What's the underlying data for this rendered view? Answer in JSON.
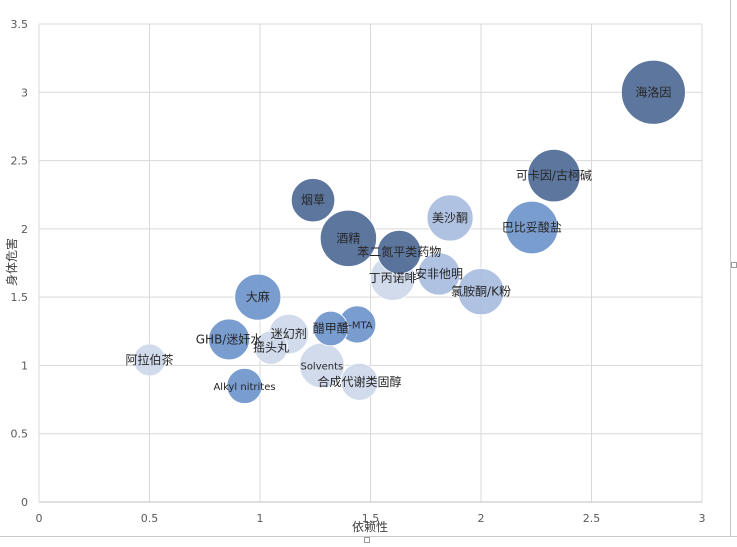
{
  "chart_data": {
    "type": "bubble",
    "title": "",
    "xlabel": "依赖性",
    "ylabel": "身体危害",
    "xlim": [
      0,
      3
    ],
    "ylim": [
      0,
      3.5
    ],
    "xticks": [
      "0",
      "0.5",
      "1",
      "1.5",
      "2",
      "2.5",
      "3"
    ],
    "yticks": [
      "0",
      "0.5",
      "1",
      "1.5",
      "2",
      "2.5",
      "3",
      "3.5"
    ],
    "grid": true,
    "legend": "none",
    "colors": {
      "dark": "#4f6a95",
      "mid": "#6f95cc",
      "light": "#a9bde0",
      "pale": "#cdd8ea"
    },
    "points": [
      {
        "label": "海洛因",
        "x": 2.78,
        "y": 3.0,
        "size": 1.0,
        "shade": "dark"
      },
      {
        "label": "可卡因/古柯碱",
        "x": 2.33,
        "y": 2.39,
        "size": 0.82,
        "shade": "dark"
      },
      {
        "label": "巴比妥酸盐",
        "x": 2.23,
        "y": 2.01,
        "size": 0.82,
        "shade": "mid"
      },
      {
        "label": "美沙酮",
        "x": 1.86,
        "y": 2.08,
        "size": 0.72,
        "shade": "light"
      },
      {
        "label": "酒精",
        "x": 1.4,
        "y": 1.93,
        "size": 0.88,
        "shade": "dark"
      },
      {
        "label": "烟草",
        "x": 1.24,
        "y": 2.21,
        "size": 0.68,
        "shade": "dark"
      },
      {
        "label": "苯二氮平类药物",
        "x": 1.63,
        "y": 1.83,
        "size": 0.68,
        "shade": "dark"
      },
      {
        "label": "丁丙诺啡",
        "x": 1.6,
        "y": 1.64,
        "size": 0.7,
        "shade": "pale"
      },
      {
        "label": "安非他明",
        "x": 1.81,
        "y": 1.67,
        "size": 0.66,
        "shade": "light"
      },
      {
        "label": "氯胺酮/K粉",
        "x": 2.0,
        "y": 1.54,
        "size": 0.72,
        "shade": "light"
      },
      {
        "label": "大麻",
        "x": 0.99,
        "y": 1.5,
        "size": 0.72,
        "shade": "mid"
      },
      {
        "label": "4-MTA",
        "x": 1.44,
        "y": 1.3,
        "size": 0.58,
        "shade": "mid"
      },
      {
        "label": "醋甲酯",
        "x": 1.32,
        "y": 1.27,
        "size": 0.54,
        "shade": "mid"
      },
      {
        "label": "迷幻剂",
        "x": 1.13,
        "y": 1.23,
        "size": 0.62,
        "shade": "pale"
      },
      {
        "label": "GHB/迷奸水",
        "x": 0.86,
        "y": 1.19,
        "size": 0.64,
        "shade": "mid"
      },
      {
        "label": "摇头丸",
        "x": 1.05,
        "y": 1.13,
        "size": 0.52,
        "shade": "pale"
      },
      {
        "label": "阿拉伯茶",
        "x": 0.5,
        "y": 1.04,
        "size": 0.5,
        "shade": "pale"
      },
      {
        "label": "Solvents",
        "x": 1.28,
        "y": 1.0,
        "size": 0.7,
        "shade": "pale"
      },
      {
        "label": "合成代谢类固醇",
        "x": 1.45,
        "y": 0.88,
        "size": 0.58,
        "shade": "pale"
      },
      {
        "label": "Alkyl nitrites",
        "x": 0.93,
        "y": 0.85,
        "size": 0.55,
        "shade": "mid"
      }
    ]
  }
}
